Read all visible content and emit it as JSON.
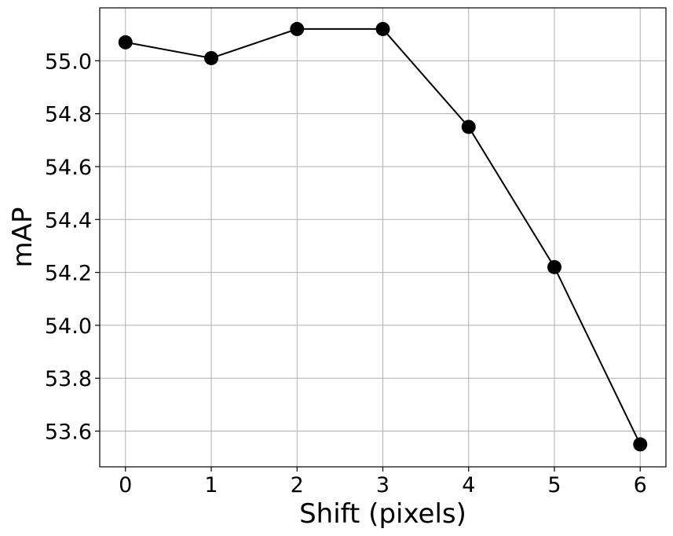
{
  "chart_data": {
    "type": "line",
    "title": "",
    "xlabel": "Shift (pixels)",
    "ylabel": "mAP",
    "x": [
      0,
      1,
      2,
      3,
      4,
      5,
      6
    ],
    "series": [
      {
        "values": [
          55.07,
          55.01,
          55.12,
          55.12,
          54.75,
          54.22,
          53.55
        ],
        "color": "#000000",
        "marker": "circle"
      }
    ],
    "xticks": [
      0,
      1,
      2,
      3,
      4,
      5,
      6
    ],
    "xtick_labels": [
      "0",
      "1",
      "2",
      "3",
      "4",
      "5",
      "6"
    ],
    "yticks": [
      53.6,
      53.8,
      54.0,
      54.2,
      54.4,
      54.6,
      54.8,
      55.0
    ],
    "ytick_labels": [
      "53.6",
      "53.8",
      "54.0",
      "54.2",
      "54.4",
      "54.6",
      "54.8",
      "55.0"
    ],
    "xlim": [
      -0.3,
      6.3
    ],
    "ylim": [
      53.465,
      55.2
    ],
    "grid": true,
    "grid_color": "#b0b0b0",
    "line_color": "#000000"
  }
}
